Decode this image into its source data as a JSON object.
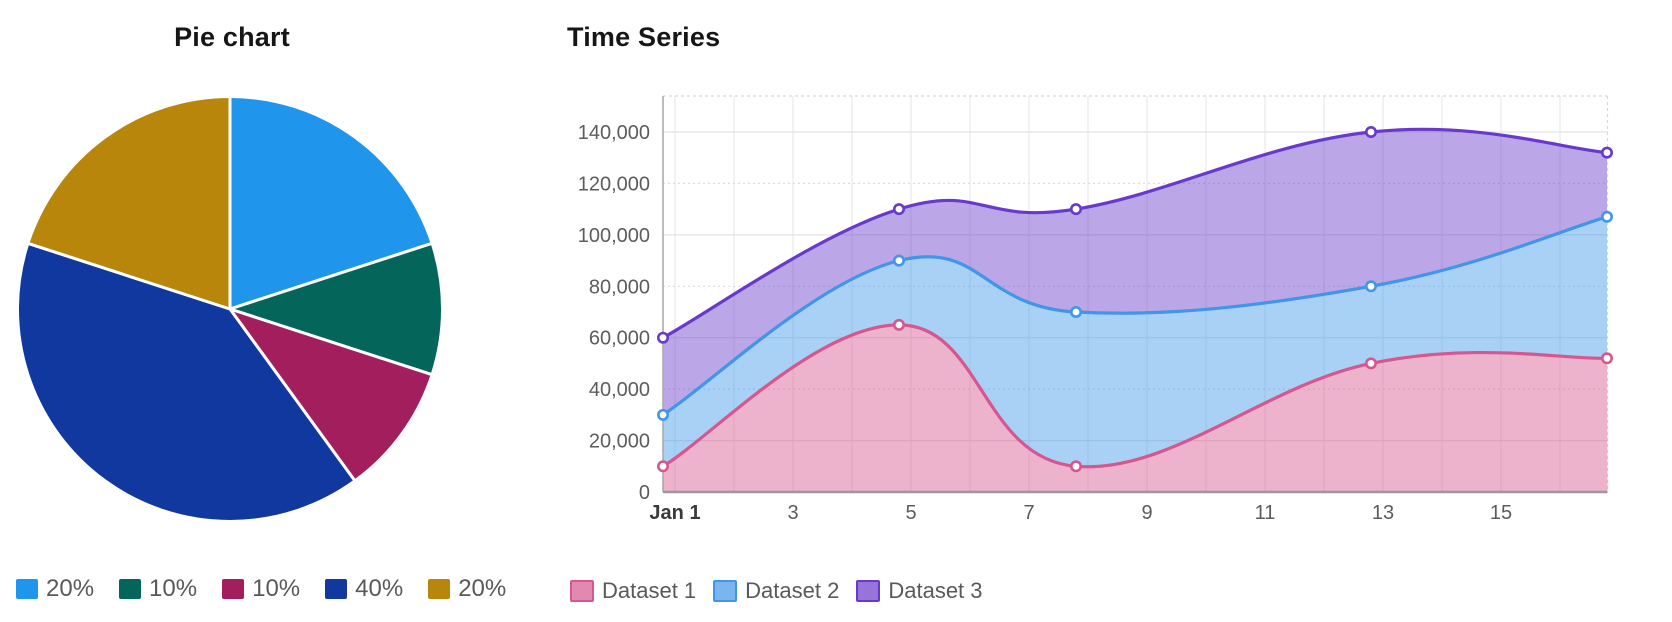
{
  "chart_data": [
    {
      "type": "pie",
      "title": "Pie chart",
      "direction": "clockwise",
      "start_angle_deg": 0,
      "legend_position": "bottom",
      "slices": [
        {
          "label": "20%",
          "value": 20,
          "color": "#1f96ec"
        },
        {
          "label": "10%",
          "value": 10,
          "color": "#04655b"
        },
        {
          "label": "10%",
          "value": 10,
          "color": "#a31e5c"
        },
        {
          "label": "40%",
          "value": 40,
          "color": "#11389f"
        },
        {
          "label": "20%",
          "value": 20,
          "color": "#b8860b"
        }
      ]
    },
    {
      "type": "area",
      "title": "Time Series",
      "x_range_days": [
        1,
        17
      ],
      "x_ticks": [
        {
          "day": 1,
          "label": "Jan 1",
          "bold": true
        },
        {
          "day": 3,
          "label": "3"
        },
        {
          "day": 5,
          "label": "5"
        },
        {
          "day": 7,
          "label": "7"
        },
        {
          "day": 9,
          "label": "9"
        },
        {
          "day": 11,
          "label": "11"
        },
        {
          "day": 13,
          "label": "13"
        },
        {
          "day": 15,
          "label": "15"
        }
      ],
      "y_ticks": [
        {
          "value": 0,
          "label": "0"
        },
        {
          "value": 20000,
          "label": "20,000"
        },
        {
          "value": 40000,
          "label": "40,000"
        },
        {
          "value": 60000,
          "label": "60,000"
        },
        {
          "value": 80000,
          "label": "80,000"
        },
        {
          "value": 100000,
          "label": "100,000"
        },
        {
          "value": 120000,
          "label": "120,000"
        },
        {
          "value": 140000,
          "label": "140,000"
        }
      ],
      "ylim": [
        0,
        154000
      ],
      "grid": {
        "horizontal": true,
        "vertical": true,
        "color": "#e7e7e7"
      },
      "fill_mode": "to-previous-series",
      "marker": {
        "shape": "circle",
        "fill": "#ffffff"
      },
      "legend_position": "bottom",
      "series": [
        {
          "name": "Dataset 1",
          "color": "#d6578f",
          "fill_opacity": 0.45,
          "points": [
            {
              "day": 1,
              "value": 10000
            },
            {
              "day": 5,
              "value": 65000
            },
            {
              "day": 8,
              "value": 10000
            },
            {
              "day": 13,
              "value": 50000
            },
            {
              "day": 17,
              "value": 52000
            }
          ]
        },
        {
          "name": "Dataset 2",
          "color": "#4196e8",
          "fill_opacity": 0.45,
          "points": [
            {
              "day": 1,
              "value": 30000
            },
            {
              "day": 5,
              "value": 90000
            },
            {
              "day": 8,
              "value": 70000
            },
            {
              "day": 13,
              "value": 80000
            },
            {
              "day": 17,
              "value": 107000
            }
          ]
        },
        {
          "name": "Dataset 3",
          "color": "#6939cb",
          "fill_opacity": 0.45,
          "points": [
            {
              "day": 1,
              "value": 60000
            },
            {
              "day": 5,
              "value": 110000
            },
            {
              "day": 8,
              "value": 110000
            },
            {
              "day": 13,
              "value": 140000
            },
            {
              "day": 17,
              "value": 132000
            }
          ]
        }
      ]
    }
  ]
}
